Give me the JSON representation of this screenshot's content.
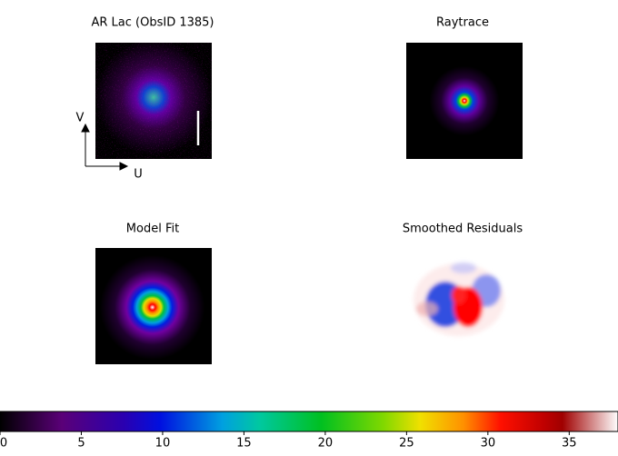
{
  "panels": [
    {
      "title": "AR Lac (ObsID 1385)"
    },
    {
      "title": "Raytrace"
    },
    {
      "title": "Model Fit"
    },
    {
      "title": "Smoothed Residuals"
    }
  ],
  "axes": {
    "u": "U",
    "v": "V"
  },
  "colorbar": {
    "lim": [
      0,
      38
    ],
    "ticks": [
      0,
      5,
      10,
      15,
      20,
      25,
      30,
      35
    ]
  }
}
